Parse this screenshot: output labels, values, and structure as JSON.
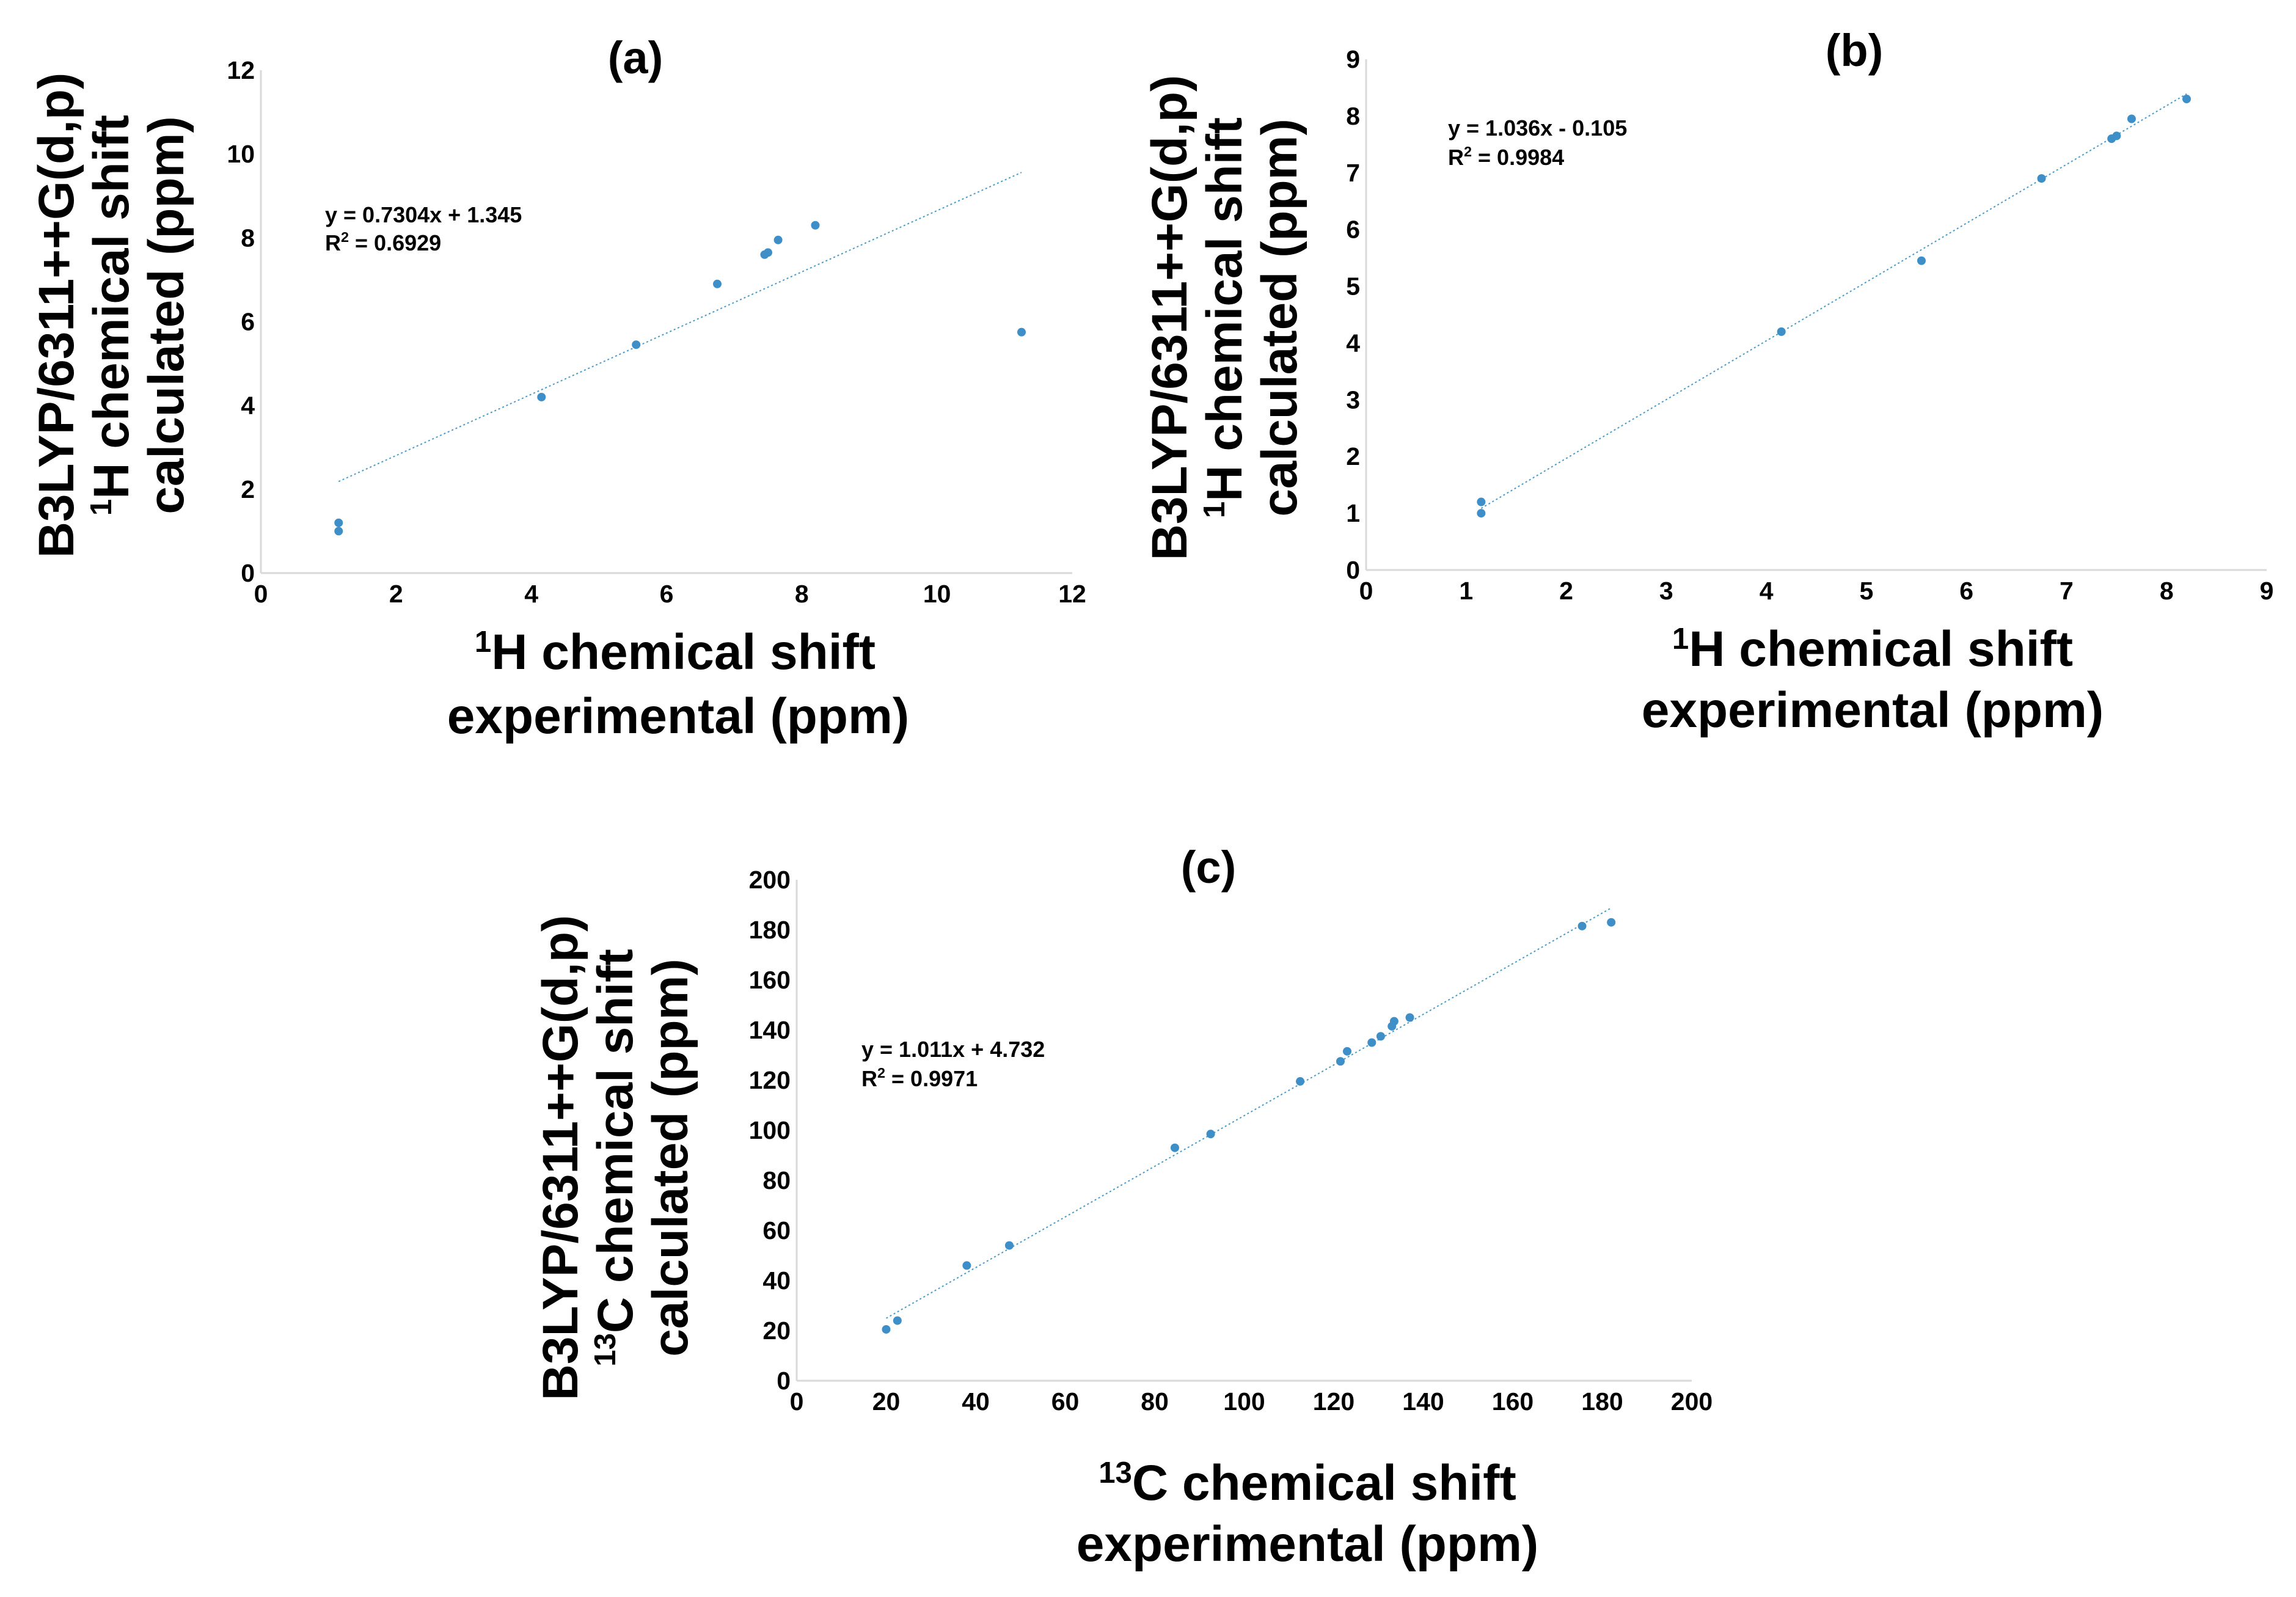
{
  "figure": {
    "background": "#ffffff",
    "marker_color": "#3e8fc8",
    "trendline_color": "#4a9ac9"
  },
  "chart_data": [
    {
      "id": "a",
      "type": "scatter",
      "title": "(a)",
      "xlabel": {
        "pre": "",
        "sup": "1",
        "rest": "H chemical shift",
        "line2": "experimental (ppm)"
      },
      "ylabel": {
        "line1": "B3LYP/6311++G(d,p)",
        "pre": "",
        "sup": "1",
        "rest": "H chemical shift",
        "line3": "calculated (ppm)"
      },
      "xlim": [
        0,
        12
      ],
      "ylim": [
        0,
        12
      ],
      "xticks": [
        "0",
        "2",
        "4",
        "6",
        "8",
        "10",
        "12"
      ],
      "yticks": [
        "0",
        "2",
        "4",
        "6",
        "8",
        "10",
        "12"
      ],
      "x": [
        1.15,
        1.15,
        4.15,
        5.55,
        6.75,
        7.45,
        7.5,
        7.65,
        8.2,
        11.25
      ],
      "y": [
        1.0,
        1.2,
        4.2,
        5.45,
        6.9,
        7.6,
        7.65,
        7.95,
        8.3,
        5.75
      ],
      "trendline": {
        "slope": 0.7304,
        "intercept": 1.345,
        "x_range": [
          1.15,
          11.25
        ]
      },
      "equation": "y = 0.7304x + 1.345",
      "r2_prefix": "R",
      "r2_sup": "2",
      "r2_value": " = 0.6929"
    },
    {
      "id": "b",
      "type": "scatter",
      "title": "(b)",
      "xlabel": {
        "pre": "",
        "sup": "1",
        "rest": "H chemical shift",
        "line2": "experimental (ppm)"
      },
      "ylabel": {
        "line1": "B3LYP/6311++G(d,p)",
        "pre": "",
        "sup": "1",
        "rest": "H chemical shift",
        "line3": "calculated (ppm)"
      },
      "xlim": [
        0,
        9
      ],
      "ylim": [
        0,
        9
      ],
      "xticks": [
        "0",
        "1",
        "2",
        "3",
        "4",
        "5",
        "6",
        "7",
        "8",
        "9"
      ],
      "yticks": [
        "0",
        "1",
        "2",
        "3",
        "4",
        "5",
        "6",
        "7",
        "8",
        "9"
      ],
      "x": [
        1.15,
        1.15,
        4.15,
        5.55,
        6.75,
        7.45,
        7.5,
        7.65,
        8.2
      ],
      "y": [
        1.0,
        1.2,
        4.2,
        5.45,
        6.9,
        7.6,
        7.65,
        7.95,
        8.3
      ],
      "trendline": {
        "slope": 1.036,
        "intercept": -0.105,
        "x_range": [
          1.15,
          8.2
        ]
      },
      "equation": "y = 1.036x - 0.105",
      "r2_prefix": "R",
      "r2_sup": "2",
      "r2_value": " = 0.9984"
    },
    {
      "id": "c",
      "type": "scatter",
      "title": "(c)",
      "xlabel": {
        "pre": "",
        "sup": "13",
        "rest": "C chemical shift",
        "line2": "experimental (ppm)"
      },
      "ylabel": {
        "line1": "B3LYP/6311++G(d,p)",
        "pre": "",
        "sup": "13",
        "rest": "C chemical shift",
        "line3": "calculated (ppm)"
      },
      "xlim": [
        0,
        200
      ],
      "ylim": [
        0,
        200
      ],
      "xticks": [
        "0",
        "20",
        "40",
        "60",
        "80",
        "100",
        "120",
        "140",
        "160",
        "180",
        "200"
      ],
      "yticks": [
        "0",
        "20",
        "40",
        "60",
        "80",
        "100",
        "120",
        "140",
        "160",
        "180",
        "200"
      ],
      "x": [
        20,
        22.5,
        38,
        47.5,
        84.5,
        92.5,
        112.5,
        121.5,
        123,
        128.5,
        130.5,
        133,
        133.5,
        137,
        175.5,
        182
      ],
      "y": [
        20.5,
        24,
        46,
        54,
        93,
        98.5,
        119.5,
        127.5,
        131.5,
        135,
        137.5,
        141.5,
        143.5,
        145,
        181.5,
        183
      ],
      "trendline": {
        "slope": 1.011,
        "intercept": 4.732,
        "x_range": [
          20,
          182
        ]
      },
      "equation": "y = 1.011x + 4.732",
      "r2_prefix": "R",
      "r2_sup": "2",
      "r2_value": " = 0.9971"
    }
  ]
}
